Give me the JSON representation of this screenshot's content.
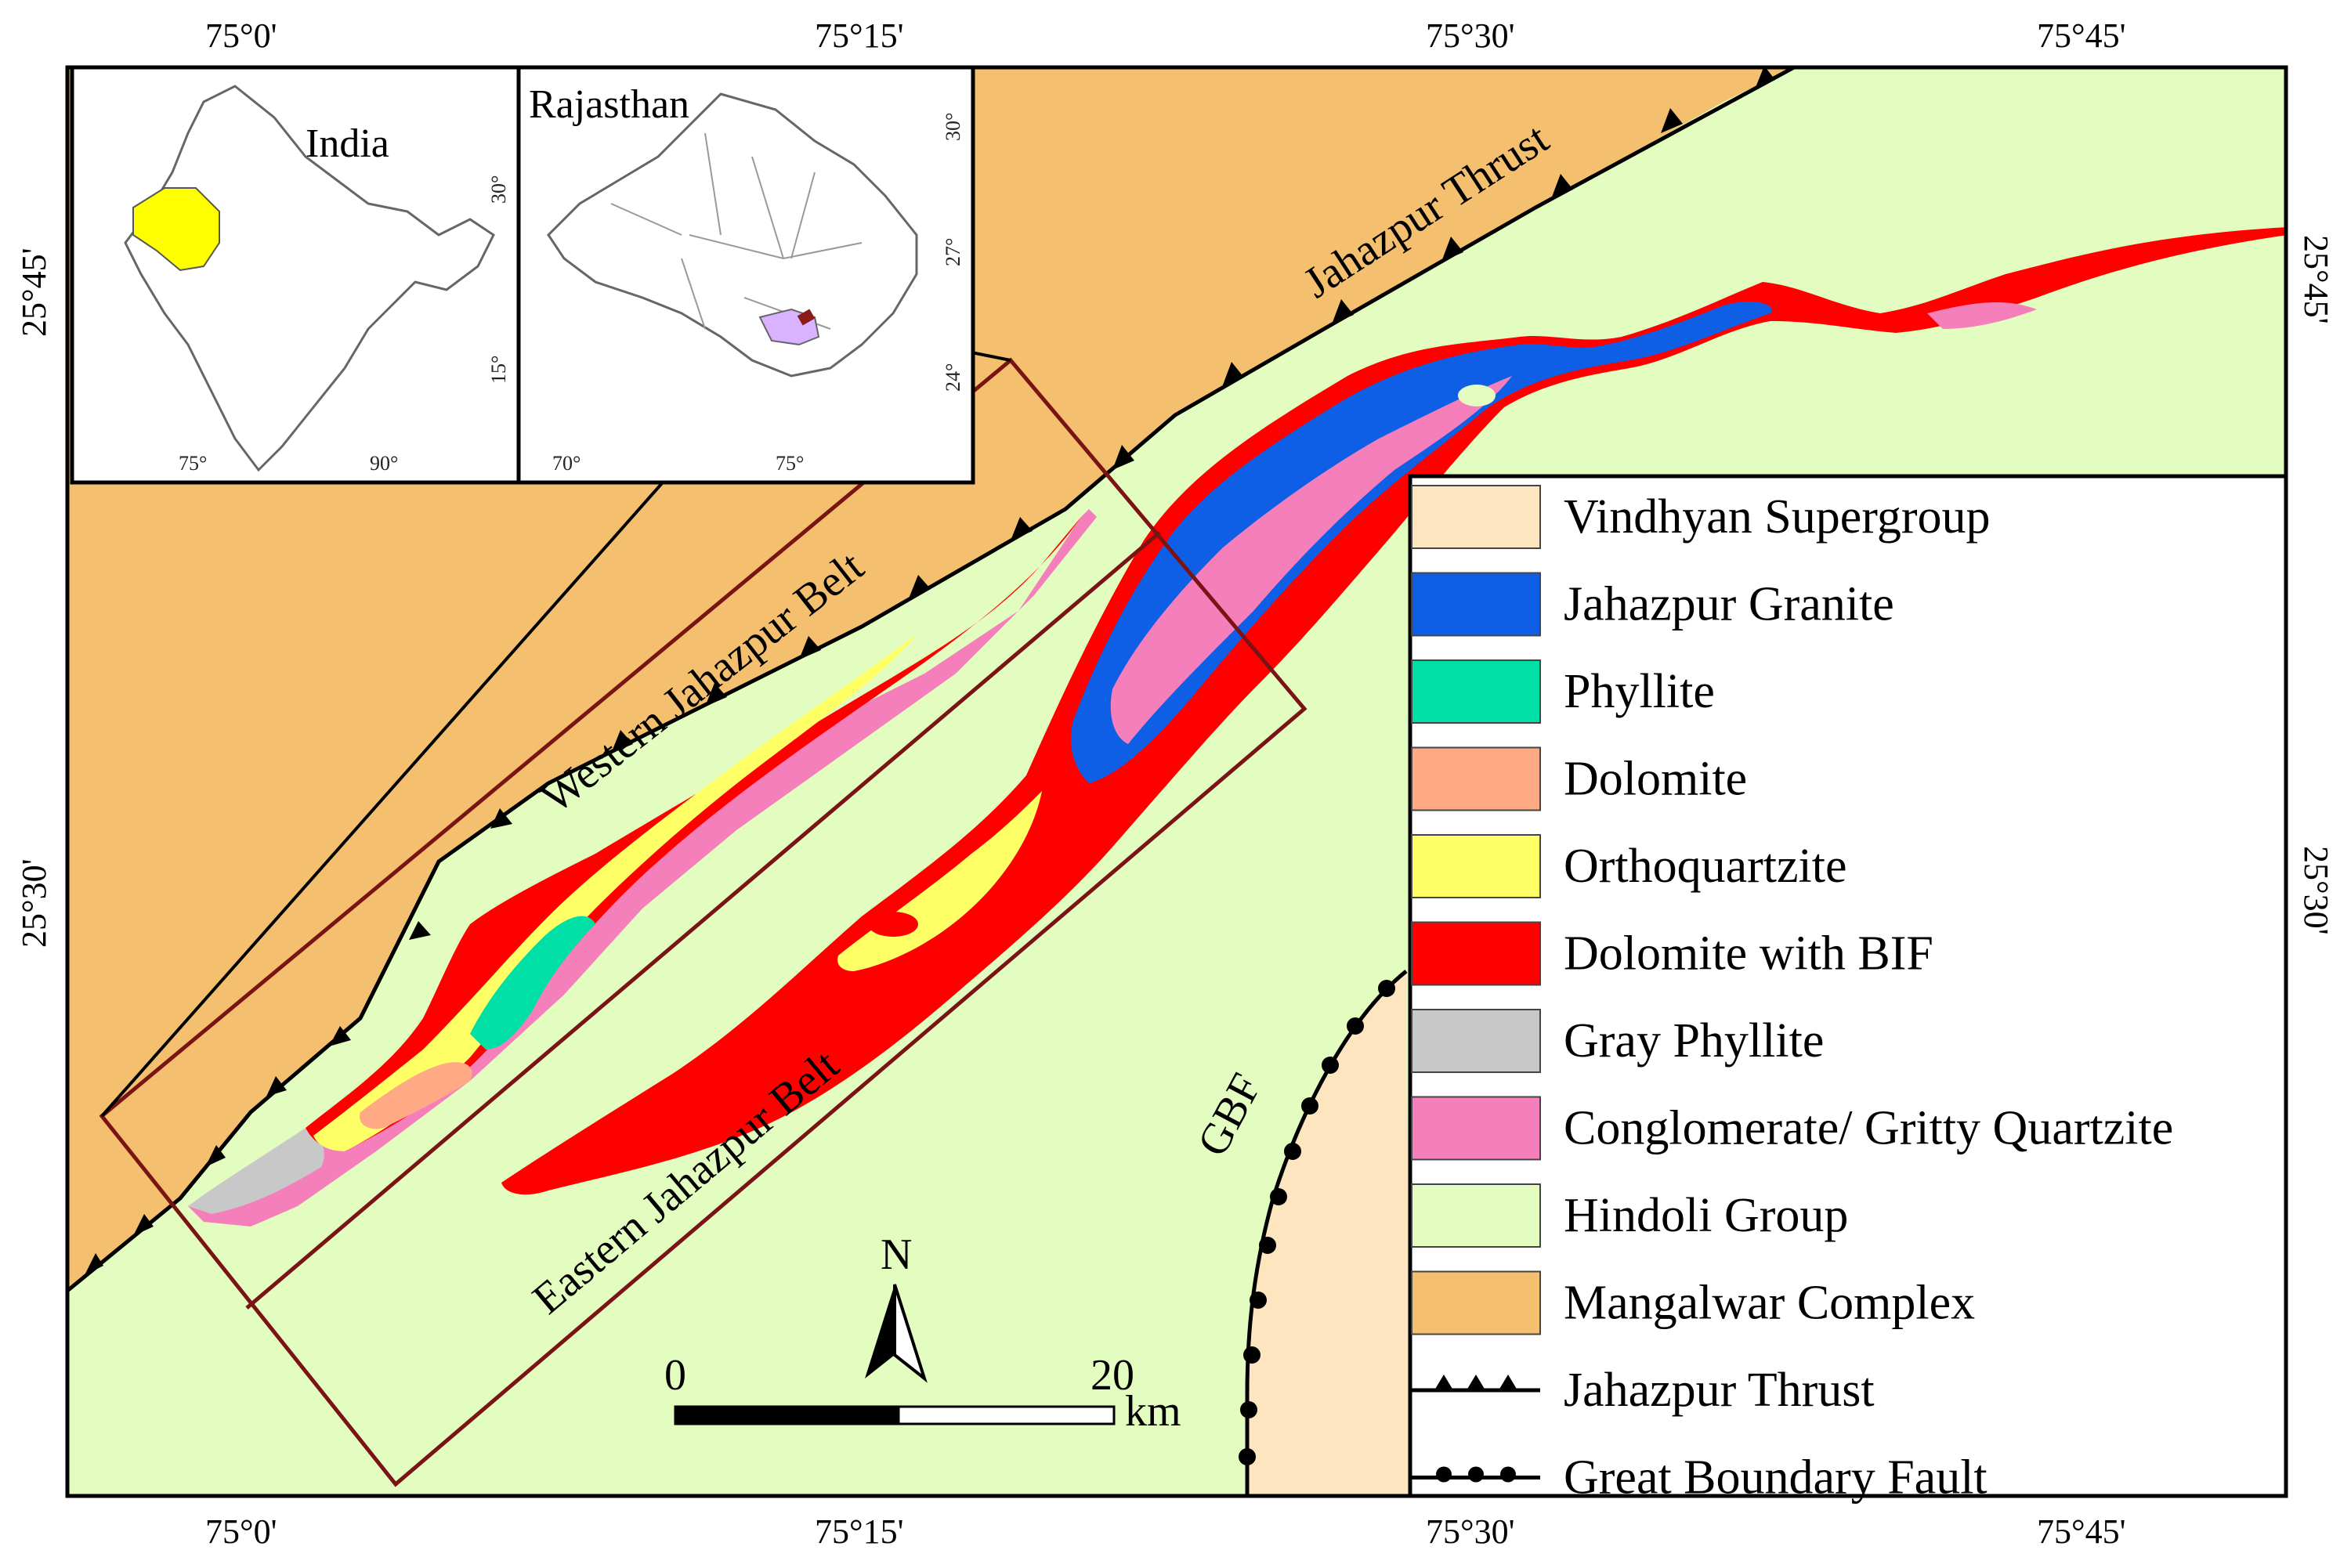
{
  "colors": {
    "vindhyan": "#FDE5BF",
    "jahazpur_granite": "#0F5FE6",
    "phyllite": "#00E0A6",
    "dolomite": "#FFAA85",
    "orthoquartzite": "#FFFF66",
    "dolomite_bif": "#FF0000",
    "gray_phyllite": "#C8C8C8",
    "conglomerate": "#F57FBB",
    "hindoli": "#E3FCC0",
    "mangalwar": "#F4C06F",
    "box_outline": "#7A1414",
    "india_highlight": "#FFFF00",
    "rajasthan_highlight": "#D9B3FF"
  },
  "coords": {
    "top": [
      "75°0'",
      "75°15'",
      "75°30'",
      "75°45'"
    ],
    "bottom": [
      "75°0'",
      "75°15'",
      "75°30'",
      "75°45'"
    ],
    "left": [
      "25°45'",
      "25°30'"
    ],
    "right": [
      "25°45'",
      "25°30'"
    ]
  },
  "inset_india": {
    "title": "India",
    "x_ticks": [
      "75°",
      "90°"
    ],
    "y_ticks": [
      "30°",
      "15°"
    ]
  },
  "inset_rajasthan": {
    "title": "Rajasthan",
    "x_ticks": [
      "70°",
      "75°"
    ],
    "y_ticks": [
      "30°",
      "27°",
      "24°"
    ]
  },
  "map_labels": {
    "jahazpur_thrust": "Jahazpur Thrust",
    "western_belt": "Western Jahazpur Belt",
    "eastern_belt": "Eastern Jahazpur Belt",
    "gbf": "GBF"
  },
  "north_arrow": "N",
  "scale_bar": {
    "start": "0",
    "end": "20",
    "unit": "km"
  },
  "legend": [
    {
      "label": "Vindhyan Supergroup",
      "color_key": "vindhyan"
    },
    {
      "label": "Jahazpur Granite",
      "color_key": "jahazpur_granite"
    },
    {
      "label": "Phyllite",
      "color_key": "phyllite"
    },
    {
      "label": "Dolomite",
      "color_key": "dolomite"
    },
    {
      "label": "Orthoquartzite",
      "color_key": "orthoquartzite"
    },
    {
      "label": "Dolomite with BIF",
      "color_key": "dolomite_bif"
    },
    {
      "label": "Gray Phyllite",
      "color_key": "gray_phyllite"
    },
    {
      "label": "Conglomerate/ Gritty Quartzite",
      "color_key": "conglomerate"
    },
    {
      "label": "Hindoli Group",
      "color_key": "hindoli"
    },
    {
      "label": "Mangalwar Complex",
      "color_key": "mangalwar"
    }
  ],
  "legend_lines": [
    {
      "label": "Jahazpur Thrust",
      "symbol": "triangle"
    },
    {
      "label": "Great Boundary Fault",
      "symbol": "circle"
    }
  ]
}
